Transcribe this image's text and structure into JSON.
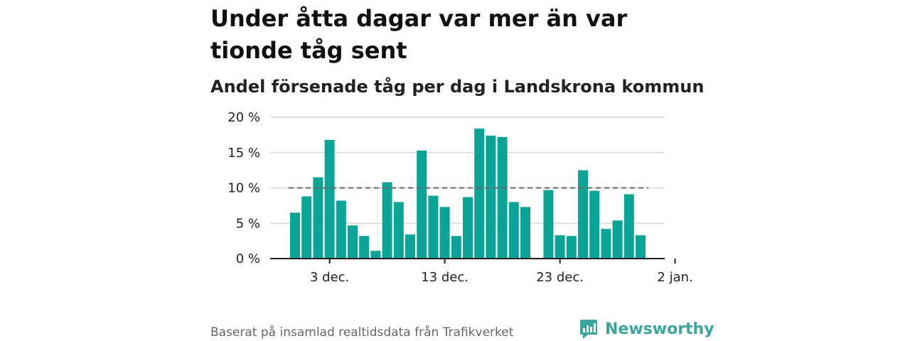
{
  "header": {
    "title": "Under åtta dagar var mer än var tionde tåg sent",
    "subtitle": "Andel försenade tåg per dag i Landskrona kommun"
  },
  "footer": {
    "source": "Baserat på insamlad realtidsdata från Trafikverket",
    "brand": "Newsworthy",
    "brand_icon": "newsworthy-logo-icon"
  },
  "colors": {
    "bar": "#0aa597",
    "reference_line": "#666666",
    "grid": "#d9d9d9",
    "axis": "#222222",
    "brand": "#3aa69b"
  },
  "chart_data": {
    "type": "bar",
    "title": "Andel försenade tåg per dag i Landskrona kommun",
    "x_start": "30 nov.",
    "x_ticks": [
      {
        "label": "3 dec.",
        "index": 3
      },
      {
        "label": "13 dec.",
        "index": 13
      },
      {
        "label": "23 dec.",
        "index": 23
      },
      {
        "label": "2 jan.",
        "index": 33
      }
    ],
    "y_ticks": [
      "0 %",
      "5 %",
      "10 %",
      "15 %",
      "20 %"
    ],
    "ylim": [
      0,
      20
    ],
    "reference_line": 10,
    "values": [
      6.5,
      8.8,
      11.5,
      16.8,
      8.2,
      4.7,
      3.2,
      1.1,
      10.8,
      8.0,
      3.4,
      15.3,
      8.9,
      7.3,
      3.2,
      8.7,
      18.4,
      17.4,
      17.2,
      8.0,
      7.3,
      null,
      9.7,
      3.3,
      3.2,
      12.5,
      9.6,
      4.2,
      5.4,
      9.1,
      3.3
    ],
    "grid": true,
    "legend": "none"
  }
}
